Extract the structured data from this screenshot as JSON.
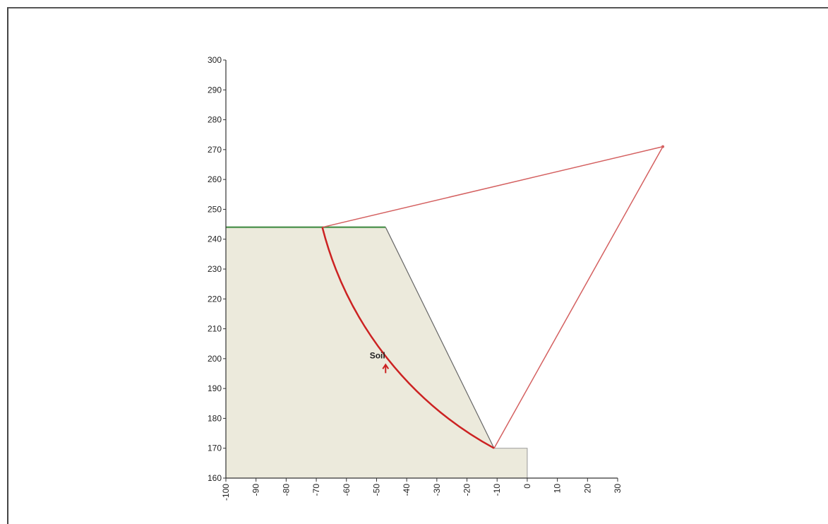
{
  "chart_data": {
    "type": "scatter",
    "title": "",
    "xlabel": "",
    "ylabel": "",
    "xlim": [
      -100,
      30
    ],
    "ylim": [
      160,
      300
    ],
    "x_ticks": [
      -100,
      -90,
      -80,
      -70,
      -60,
      -50,
      -40,
      -30,
      -20,
      -10,
      0,
      10,
      20,
      30
    ],
    "y_ticks": [
      160,
      170,
      180,
      190,
      200,
      210,
      220,
      230,
      240,
      250,
      260,
      270,
      280,
      290,
      300
    ],
    "x_tick_labels": [
      "-100",
      "-90",
      "-80",
      "-70",
      "-60",
      "-50",
      "-40",
      "-30",
      "-20",
      "-10",
      "0",
      "10",
      "20",
      "30"
    ],
    "y_tick_labels": [
      "160",
      "170",
      "180",
      "190",
      "200",
      "210",
      "220",
      "230",
      "240",
      "250",
      "260",
      "270",
      "280",
      "290",
      "300"
    ],
    "grid": false,
    "slope_profile": {
      "points": [
        [
          -100,
          160
        ],
        [
          -100,
          244
        ],
        [
          -47,
          244
        ],
        [
          -11,
          170
        ],
        [
          0,
          170
        ],
        [
          0,
          160
        ]
      ],
      "fill_color": "#eceadc",
      "outline_color": "#666666",
      "crest_color": "#5a9a5a"
    },
    "slip_surface": {
      "center": [
        45,
        271
      ],
      "entry": [
        -68,
        244
      ],
      "exit": [
        -11,
        170
      ],
      "color": "#cc2222",
      "radius_line_color": "#d46060"
    },
    "material_label": {
      "text": "Soil",
      "position": [
        -49,
        201
      ],
      "arrow_to": [
        -47,
        198
      ]
    }
  }
}
